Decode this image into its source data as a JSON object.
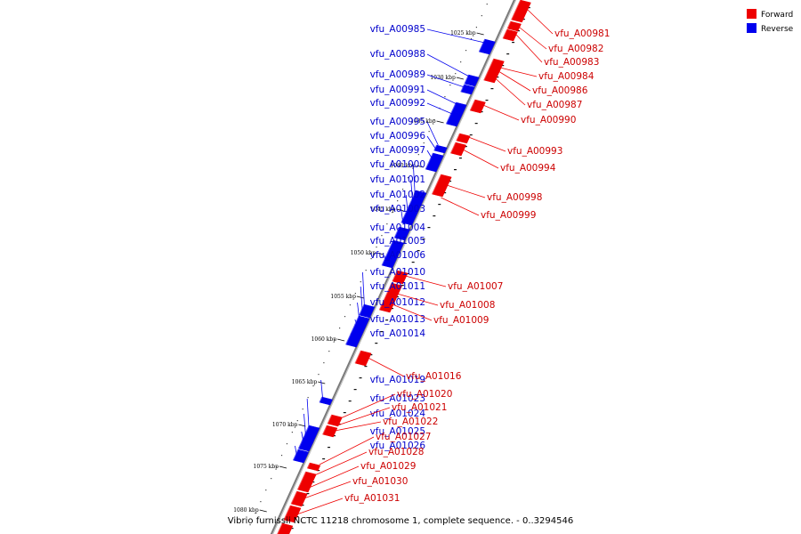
{
  "caption": "Vibrio furnissii NCTC 11218 chromosome 1, complete sequence. - 0..3294546",
  "legend": {
    "forward": {
      "label": "Forward",
      "color": "#ee0000"
    },
    "reverse": {
      "label": "Reverse",
      "color": "#0000ee"
    }
  },
  "ticks": [
    "1025 kbp",
    "1030 kbp",
    "1035 kbp",
    "1040 kbp",
    "1045 kbp",
    "1050 kbp",
    "1055 kbp",
    "1060 kbp",
    "1065 kbp",
    "1070 kbp",
    "1075 kbp",
    "1080 kbp"
  ],
  "reverse_genes": [
    "vfu_A00985",
    "vfu_A00988",
    "vfu_A00989",
    "vfu_A00991",
    "vfu_A00992",
    "vfu_A00995",
    "vfu_A00996",
    "vfu_A00997",
    "vfu_A01000",
    "vfu_A01001",
    "vfu_A01002",
    "vfu_A01003",
    "vfu_A01004",
    "vfu_A01005",
    "vfu_A01006",
    "vfu_A01010",
    "vfu_A01011",
    "vfu_A01012",
    "vfu_A01013",
    "vfu_A01014",
    "vfu_A01019",
    "vfu_A01023",
    "vfu_A01024",
    "vfu_A01025",
    "vfu_A01026"
  ],
  "forward_genes": [
    "vfu_A00981",
    "vfu_A00982",
    "vfu_A00983",
    "vfu_A00984",
    "vfu_A00986",
    "vfu_A00987",
    "vfu_A00990",
    "vfu_A00993",
    "vfu_A00994",
    "vfu_A00998",
    "vfu_A00999",
    "vfu_A01007",
    "vfu_A01008",
    "vfu_A01009",
    "vfu_A01016",
    "vfu_A01020",
    "vfu_A01021",
    "vfu_A01022",
    "vfu_A01027",
    "vfu_A01028",
    "vfu_A01029",
    "vfu_A01030",
    "vfu_A01031"
  ]
}
